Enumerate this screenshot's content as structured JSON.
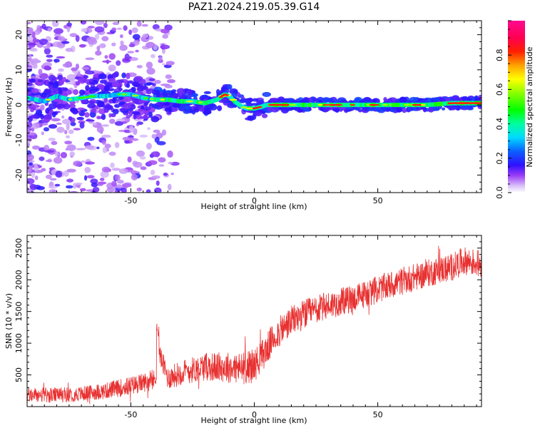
{
  "title": "PAZ1.2024.219.05.39.G14",
  "chart_data": [
    {
      "type": "heatmap",
      "xlabel": "Height of straight line (km)",
      "ylabel": "Frequency (Hz)",
      "xlim": [
        -92,
        92
      ],
      "ylim": [
        -25,
        24
      ],
      "xticks": [
        -50,
        0,
        50
      ],
      "yticks": [
        -20,
        -10,
        0,
        10,
        20
      ],
      "colormap": "gist_ncar-like (white → purple → blue → cyan → green → yellow → red → pink)",
      "colorbar": {
        "label": "Normalized spectral amplitude",
        "range": [
          0.0,
          1.0
        ],
        "ticks": [
          0.0,
          0.2,
          0.4,
          0.6,
          0.8
        ]
      },
      "ridge": {
        "description": "dominant frequency track vs height",
        "x": [
          -92,
          -85,
          -80,
          -75,
          -70,
          -65,
          -60,
          -55,
          -50,
          -45,
          -40,
          -35,
          -30,
          -25,
          -20,
          -15,
          -12,
          -10,
          -8,
          -5,
          -3,
          0,
          3,
          5,
          8,
          10,
          20,
          30,
          40,
          50,
          60,
          70,
          80,
          92
        ],
        "y": [
          2.0,
          1.0,
          2.5,
          1.5,
          2.0,
          2.5,
          2.5,
          3.0,
          3.0,
          2.0,
          1.5,
          1.5,
          1.0,
          1.0,
          0.5,
          1.5,
          3.0,
          2.5,
          1.0,
          -0.5,
          -1.0,
          -1.0,
          -0.5,
          0.0,
          0.0,
          0.0,
          0.0,
          0.0,
          0.0,
          0.0,
          0.0,
          0.0,
          0.5,
          0.5
        ]
      },
      "scatter_extent": "energy scattered across −25 to 24 Hz for heights below about −40 km"
    },
    {
      "type": "line",
      "color": "#e83030",
      "xlabel": "Height of straight line (km)",
      "ylabel": "SNR (10 * v/v)",
      "xlim": [
        -92,
        92
      ],
      "ylim": [
        0,
        2700
      ],
      "xticks": [
        -50,
        0,
        50
      ],
      "yticks": [
        500,
        1000,
        1500,
        2000,
        2500
      ],
      "x": [
        -92,
        -80,
        -70,
        -60,
        -50,
        -45,
        -40,
        -39,
        -35,
        -30,
        -20,
        -10,
        -5,
        0,
        5,
        8,
        15,
        20,
        30,
        40,
        50,
        60,
        70,
        80,
        85,
        92
      ],
      "y": [
        180,
        180,
        200,
        250,
        330,
        380,
        420,
        900,
        450,
        530,
        630,
        620,
        600,
        650,
        900,
        1100,
        1350,
        1450,
        1600,
        1700,
        1850,
        1980,
        2100,
        2200,
        2300,
        2250
      ],
      "noise_amplitude": [
        120,
        120,
        120,
        130,
        150,
        150,
        170,
        170,
        180,
        200,
        220,
        250,
        260,
        260,
        250,
        250,
        240,
        240,
        220,
        220,
        220,
        220,
        220,
        220,
        220,
        220
      ]
    }
  ]
}
